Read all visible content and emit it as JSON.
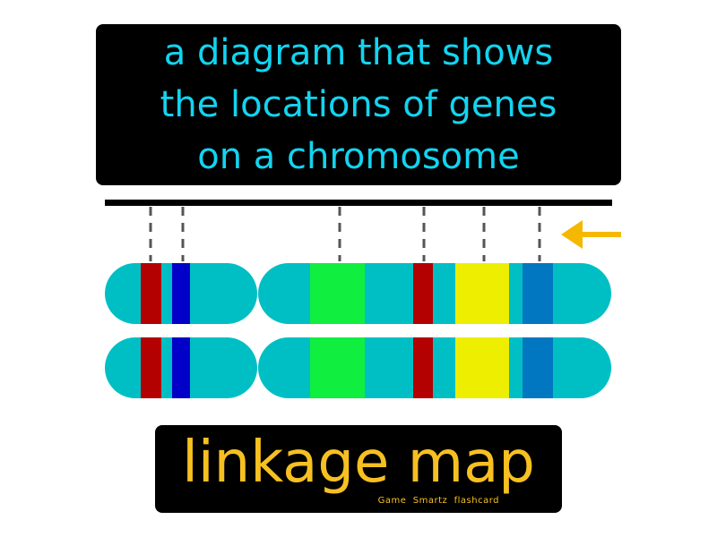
{
  "definition": {
    "text": "a diagram that shows\nthe locations of genes\non a chromosome"
  },
  "term": {
    "text": "linkage map",
    "brand": "Game  Smartz  flashcard"
  },
  "colors": {
    "chromosome": "#00bfc4",
    "gene_red": "#b30000",
    "gene_navy": "#0000c8",
    "gene_green": "#10ee40",
    "gene_yellow": "#eeee00",
    "gene_blue": "#0077c0",
    "arrow": "#f5b800",
    "definition_text": "#12d4f0",
    "term_text": "#f7c021"
  },
  "icons": [
    "left-arrow-icon"
  ]
}
